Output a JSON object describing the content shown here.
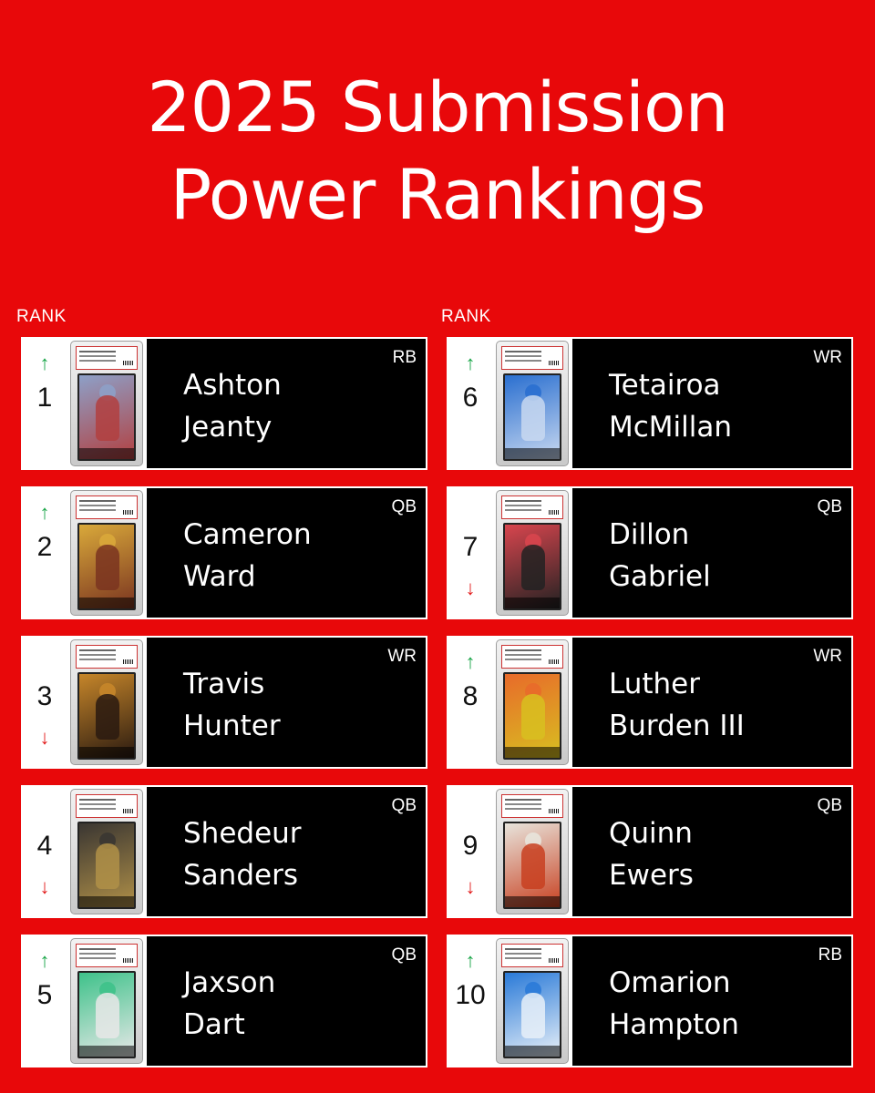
{
  "title": {
    "line1": "2025 Submission",
    "line2": "Power Rankings"
  },
  "rank_header": "RANK",
  "colors": {
    "background": "#e8080a",
    "up": "#1aa648",
    "down": "#e21a1a",
    "panel": "#000000"
  },
  "left": [
    {
      "rank": "1",
      "trend": "up",
      "arrow": "↑",
      "first": "Ashton",
      "last": "Jeanty",
      "position": "RB",
      "card_colors": [
        "#8da0c8",
        "#b24040"
      ]
    },
    {
      "rank": "2",
      "trend": "up",
      "arrow": "↑",
      "first": "Cameron",
      "last": "Ward",
      "position": "QB",
      "card_colors": [
        "#d9a93a",
        "#7a3420"
      ]
    },
    {
      "rank": "3",
      "trend": "down",
      "arrow": "↓",
      "first": "Travis",
      "last": "Hunter",
      "position": "WR",
      "card_colors": [
        "#c6862a",
        "#2a1a10"
      ]
    },
    {
      "rank": "4",
      "trend": "down",
      "arrow": "↓",
      "first": "Shedeur",
      "last": "Sanders",
      "position": "QB",
      "card_colors": [
        "#3a3632",
        "#b09048"
      ]
    },
    {
      "rank": "5",
      "trend": "up",
      "arrow": "↑",
      "first": "Jaxson",
      "last": "Dart",
      "position": "QB",
      "card_colors": [
        "#3ec28a",
        "#e8e8e8"
      ]
    }
  ],
  "right": [
    {
      "rank": "6",
      "trend": "up",
      "arrow": "↑",
      "first": "Tetairoa",
      "last": "McMillan",
      "position": "WR",
      "card_colors": [
        "#2a6fd0",
        "#c8d8f0"
      ]
    },
    {
      "rank": "7",
      "trend": "down",
      "arrow": "↓",
      "first": "Dillon",
      "last": "Gabriel",
      "position": "QB",
      "card_colors": [
        "#d8454e",
        "#222222"
      ]
    },
    {
      "rank": "8",
      "trend": "up",
      "arrow": "↑",
      "first": "Luther",
      "last": "Burden III",
      "position": "WR",
      "card_colors": [
        "#e86a2a",
        "#d8c020"
      ]
    },
    {
      "rank": "9",
      "trend": "down",
      "arrow": "↓",
      "first": "Quinn",
      "last": "Ewers",
      "position": "QB",
      "card_colors": [
        "#e8e4dc",
        "#c84020"
      ]
    },
    {
      "rank": "10",
      "trend": "up",
      "arrow": "↑",
      "first": "Omarion",
      "last": "Hampton",
      "position": "RB",
      "card_colors": [
        "#2a7ad8",
        "#e8f0f8"
      ]
    }
  ]
}
